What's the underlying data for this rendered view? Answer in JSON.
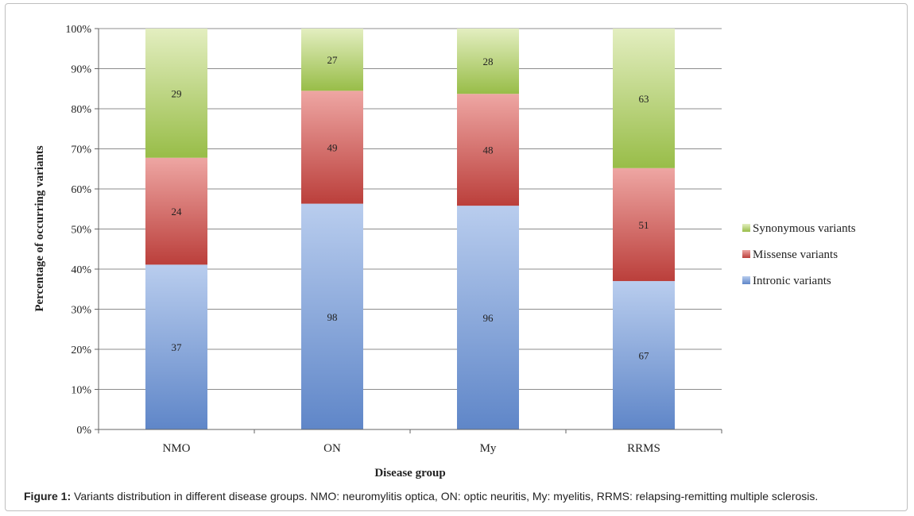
{
  "chart_data": {
    "type": "bar",
    "stacked": "percent",
    "categories": [
      "NMO",
      "ON",
      "My",
      "RRMS"
    ],
    "series": [
      {
        "name": "Intronic variants",
        "values": [
          37,
          98,
          96,
          67
        ],
        "color": "#6f93cf"
      },
      {
        "name": "Missense variants",
        "values": [
          24,
          49,
          48,
          51
        ],
        "color": "#c9514e"
      },
      {
        "name": "Synonymous variants",
        "values": [
          29,
          27,
          28,
          63
        ],
        "color": "#a9c85e"
      }
    ],
    "yticks": [
      "0%",
      "10%",
      "20%",
      "30%",
      "40%",
      "50%",
      "60%",
      "70%",
      "80%",
      "90%",
      "100%"
    ],
    "ylim": [
      0,
      100
    ],
    "xlabel": "Disease group",
    "ylabel": "Percentage of occurring variants",
    "legend_position": "right",
    "grid": true
  },
  "caption": {
    "label": "Figure 1:",
    "text": " Variants distribution in different disease groups. NMO: neuromylitis optica, ON: optic neuritis, My: myelitis, RRMS: relapsing-remitting multiple sclerosis."
  }
}
